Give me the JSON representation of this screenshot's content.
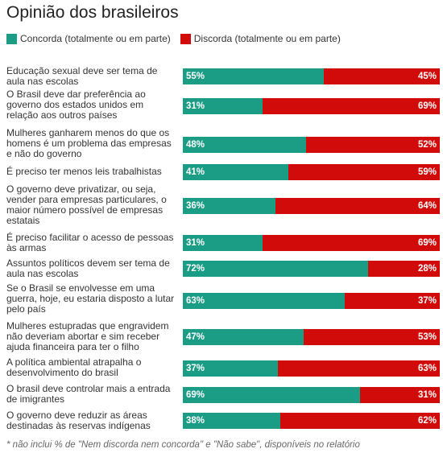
{
  "chart_data": {
    "type": "bar",
    "title": "Opinião dos brasileiros",
    "legend": [
      "Concorda (totalmente ou em parte)",
      "Discorda (totalmente ou em parte)"
    ],
    "colors": {
      "concorda": "#1a9c85",
      "discorda": "#d10a0a"
    },
    "categories": [
      "Educação sexual deve ser tema de aula nas escolas",
      "O Brasil deve dar preferência ao governo dos estados unidos em relação aos outros países",
      "Mulheres ganharem menos do que os homens é um problema das empresas e não do governo",
      "É preciso ter menos leis trabalhistas",
      "O governo deve privatizar, ou seja, vender para empresas particulares, o maior número possível de empresas estatais",
      "É preciso facilitar o acesso de pessoas às armas",
      "Assuntos políticos devem ser tema de aula nas escolas",
      "Se o Brasil se envolvesse em uma guerra, hoje, eu estaria disposto a lutar pelo país",
      "Mulheres estupradas que engravidem não deveriam abortar e sim receber ajuda financeira para ter o filho",
      "A política ambiental atrapalha o desenvolvimento do brasil",
      "O brasil deve controlar mais a entrada de imigrantes",
      "O governo deve reduzir as áreas destinadas às reservas indígenas"
    ],
    "series": [
      {
        "name": "Concorda (totalmente ou em parte)",
        "values": [
          55,
          31,
          48,
          41,
          36,
          31,
          72,
          63,
          47,
          37,
          69,
          38
        ]
      },
      {
        "name": "Discorda (totalmente ou em parte)",
        "values": [
          45,
          69,
          52,
          59,
          64,
          69,
          28,
          37,
          53,
          63,
          31,
          62
        ]
      }
    ],
    "value_suffix": "%",
    "xlim": [
      0,
      100
    ],
    "grid": false,
    "legend_position": "top-left",
    "note": "* não inclui % de \"Nem discorda nem concorda\" e \"Não sabe\", disponíveis no relatório"
  }
}
